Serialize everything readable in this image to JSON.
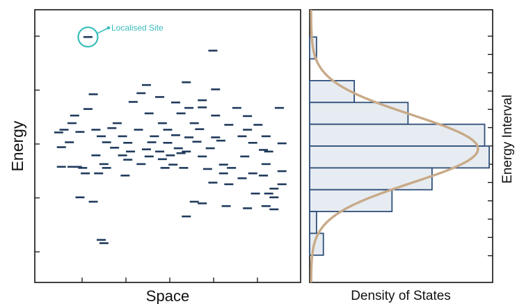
{
  "colors": {
    "frame": "#111111",
    "state": "#1f3a5c",
    "annotation": "#37bdb9",
    "bar_fill": "#e7ecf2",
    "bar_edge": "#2e4f78",
    "curve": "#c8aa88"
  },
  "chart_data": [
    {
      "type": "scatter",
      "marker": "horizontal-dash",
      "xlabel": "Space",
      "ylabel": "Energy",
      "xlim": [
        0,
        100
      ],
      "ylim": [
        -2.5,
        2.5
      ],
      "x_ticks": 5,
      "y_ticks": 5,
      "grid": false,
      "annotation": {
        "label": "Localised Site",
        "target": [
          20.0,
          2.0
        ]
      },
      "points": [
        [
          20.0,
          2.0
        ],
        [
          67.0,
          1.75
        ],
        [
          22.0,
          0.95
        ],
        [
          42.0,
          1.12
        ],
        [
          57.0,
          1.17
        ],
        [
          68.0,
          1.04
        ],
        [
          40.0,
          0.97
        ],
        [
          47.0,
          0.9
        ],
        [
          37.0,
          0.81
        ],
        [
          53.0,
          0.8
        ],
        [
          63.0,
          0.84
        ],
        [
          76.0,
          0.7
        ],
        [
          92.0,
          0.7
        ],
        [
          20.0,
          0.68
        ],
        [
          58.0,
          0.7
        ],
        [
          63.0,
          0.71
        ],
        [
          15.0,
          0.56
        ],
        [
          43.0,
          0.6
        ],
        [
          55.0,
          0.6
        ],
        [
          68.0,
          0.56
        ],
        [
          80.0,
          0.55
        ],
        [
          14.0,
          0.42
        ],
        [
          31.0,
          0.42
        ],
        [
          48.0,
          0.42
        ],
        [
          60.0,
          0.42
        ],
        [
          73.0,
          0.39
        ],
        [
          84.0,
          0.39
        ],
        [
          11.0,
          0.3
        ],
        [
          23.0,
          0.3
        ],
        [
          29.0,
          0.33
        ],
        [
          39.0,
          0.3
        ],
        [
          50.0,
          0.3
        ],
        [
          62.0,
          0.31
        ],
        [
          80.0,
          0.3
        ],
        [
          9.0,
          0.25
        ],
        [
          17.0,
          0.26
        ],
        [
          25.0,
          0.18
        ],
        [
          33.0,
          0.18
        ],
        [
          45.0,
          0.18
        ],
        [
          53.0,
          0.2
        ],
        [
          58.0,
          0.16
        ],
        [
          68.0,
          0.16
        ],
        [
          78.0,
          0.18
        ],
        [
          87.0,
          0.18
        ],
        [
          13.0,
          0.07
        ],
        [
          27.0,
          0.07
        ],
        [
          35.0,
          0.06
        ],
        [
          44.0,
          0.07
        ],
        [
          50.0,
          0.06
        ],
        [
          61.0,
          0.08
        ],
        [
          70.0,
          0.1
        ],
        [
          82.0,
          0.06
        ],
        [
          93.0,
          0.05
        ],
        [
          10.0,
          -0.02
        ],
        [
          30.0,
          -0.03
        ],
        [
          42.0,
          -0.06
        ],
        [
          54.0,
          -0.04
        ],
        [
          66.0,
          -0.04
        ],
        [
          86.0,
          -0.07
        ],
        [
          88.0,
          -0.1
        ],
        [
          36.0,
          -0.1
        ],
        [
          47.0,
          -0.1
        ],
        [
          55.0,
          -0.13
        ],
        [
          57.0,
          -0.1
        ],
        [
          23.0,
          -0.17
        ],
        [
          33.0,
          -0.17
        ],
        [
          43.0,
          -0.19
        ],
        [
          51.0,
          -0.17
        ],
        [
          63.0,
          -0.19
        ],
        [
          79.0,
          -0.19
        ],
        [
          48.0,
          -0.24
        ],
        [
          35.0,
          -0.25
        ],
        [
          26.0,
          -0.33
        ],
        [
          40.0,
          -0.33
        ],
        [
          52.0,
          -0.34
        ],
        [
          71.0,
          -0.34
        ],
        [
          87.0,
          -0.33
        ],
        [
          10.0,
          -0.38
        ],
        [
          14.0,
          -0.38
        ],
        [
          16.0,
          -0.38
        ],
        [
          18.0,
          -0.4
        ],
        [
          27.0,
          -0.4
        ],
        [
          49.0,
          -0.4
        ],
        [
          56.0,
          -0.4
        ],
        [
          65.0,
          -0.42
        ],
        [
          74.0,
          -0.4
        ],
        [
          19.0,
          -0.5
        ],
        [
          24.0,
          -0.5
        ],
        [
          34.0,
          -0.54
        ],
        [
          71.0,
          -0.5
        ],
        [
          82.0,
          -0.5
        ],
        [
          93.0,
          -0.46
        ],
        [
          78.0,
          -0.59
        ],
        [
          86.0,
          -0.54
        ],
        [
          67.0,
          -0.67
        ],
        [
          73.0,
          -0.7
        ],
        [
          90.0,
          -0.78
        ],
        [
          93.0,
          -0.7
        ],
        [
          83.0,
          -0.87
        ],
        [
          88.0,
          -0.87
        ],
        [
          17.0,
          -0.94
        ],
        [
          22.0,
          -1.02
        ],
        [
          90.0,
          -0.94
        ],
        [
          60.0,
          -1.02
        ],
        [
          63.0,
          -1.05
        ],
        [
          72.0,
          -1.1
        ],
        [
          87.0,
          -1.1
        ],
        [
          80.0,
          -1.14
        ],
        [
          90.0,
          -1.16
        ],
        [
          57.0,
          -1.29
        ],
        [
          25.0,
          -1.72
        ],
        [
          26.0,
          -1.78
        ]
      ]
    },
    {
      "type": "bar",
      "orientation": "horizontal",
      "xlabel": "Density of States",
      "ylabel": "Energy Interval",
      "ylim": [
        -2.5,
        2.5
      ],
      "xlim": [
        0,
        8
      ],
      "y_ticks": 13,
      "bin_edges": [
        2.0,
        1.6,
        1.2,
        0.8,
        0.4,
        0.0,
        -0.4,
        -0.8,
        -1.2,
        -1.6,
        -2.0
      ],
      "values": [
        0.3,
        0.0,
        1.95,
        4.3,
        7.65,
        7.85,
        5.35,
        3.6,
        0.3,
        0.6
      ],
      "gaussian": {
        "mean": -0.05,
        "sigma": 0.62,
        "peak": 7.3
      },
      "grid": false
    }
  ]
}
